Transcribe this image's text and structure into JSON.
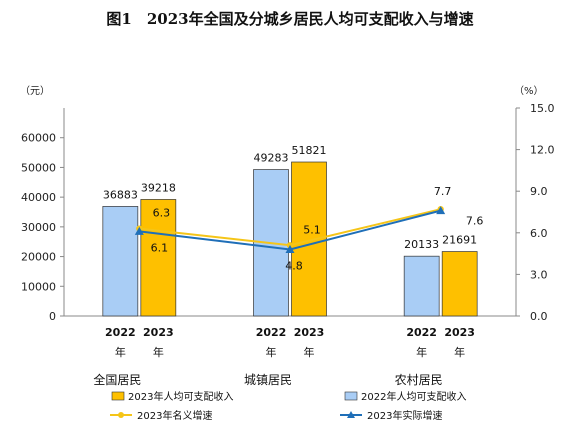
{
  "title": "图1　2023年全国及分城乡居民人均可支配收入与增速",
  "left_unit": "（元）",
  "right_unit": "（%）",
  "year_suffix": "年",
  "chart_data": {
    "type": "bar",
    "title": "图1　2023年全国及分城乡居民人均可支配收入与增速",
    "categories": [
      "全国居民",
      "城镇居民",
      "农村居民"
    ],
    "years": [
      "2022",
      "2023"
    ],
    "ylim": [
      0,
      70000
    ],
    "y_ticks": [
      0,
      10000,
      20000,
      30000,
      40000,
      50000,
      60000
    ],
    "y2lim": [
      0,
      15
    ],
    "y2_ticks": [
      "0.0",
      "3.0",
      "6.0",
      "9.0",
      "12.0",
      "15.0"
    ],
    "series": [
      {
        "name": "2022年人均可支配收入",
        "kind": "bar",
        "color": "#a9cdf5",
        "values": [
          36883,
          49283,
          20133
        ]
      },
      {
        "name": "2023年人均可支配收入",
        "kind": "bar",
        "color": "#fec000",
        "values": [
          39218,
          51821,
          21691
        ]
      },
      {
        "name": "2023年名义增速",
        "kind": "line",
        "axis": "right",
        "color": "#f5c518",
        "values": [
          6.3,
          5.1,
          7.7
        ]
      },
      {
        "name": "2023年实际增速",
        "kind": "line",
        "axis": "right",
        "color": "#1f6fb8",
        "values": [
          6.1,
          4.8,
          7.6
        ]
      }
    ],
    "grid": false,
    "legend_position": "bottom"
  }
}
